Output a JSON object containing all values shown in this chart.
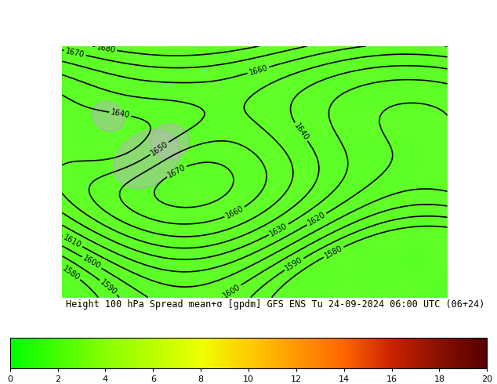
{
  "title": "Height 100 hPa Spread mean+σ [gpdm] GFS ENS Tu 24-09-2024 06:00 UTC (06+24)",
  "colorbar_label": "Height 100 hPa Spread mean+σ [gpdm] GFS ENS Tu 24-09-2024 06:00 UTC (06+24)",
  "cbar_ticks": [
    0,
    2,
    4,
    6,
    8,
    10,
    12,
    14,
    16,
    18,
    20
  ],
  "cbar_colors": [
    "#00ff00",
    "#44ff00",
    "#88ff00",
    "#bbff00",
    "#eeff00",
    "#ffcc00",
    "#ff9900",
    "#ff6600",
    "#cc2200",
    "#881100",
    "#550000"
  ],
  "map_bg_color": "#00cc00",
  "contour_color": "#000000",
  "label_fontsize": 9,
  "title_fontsize": 8.5,
  "fig_width": 6.34,
  "fig_height": 4.9
}
